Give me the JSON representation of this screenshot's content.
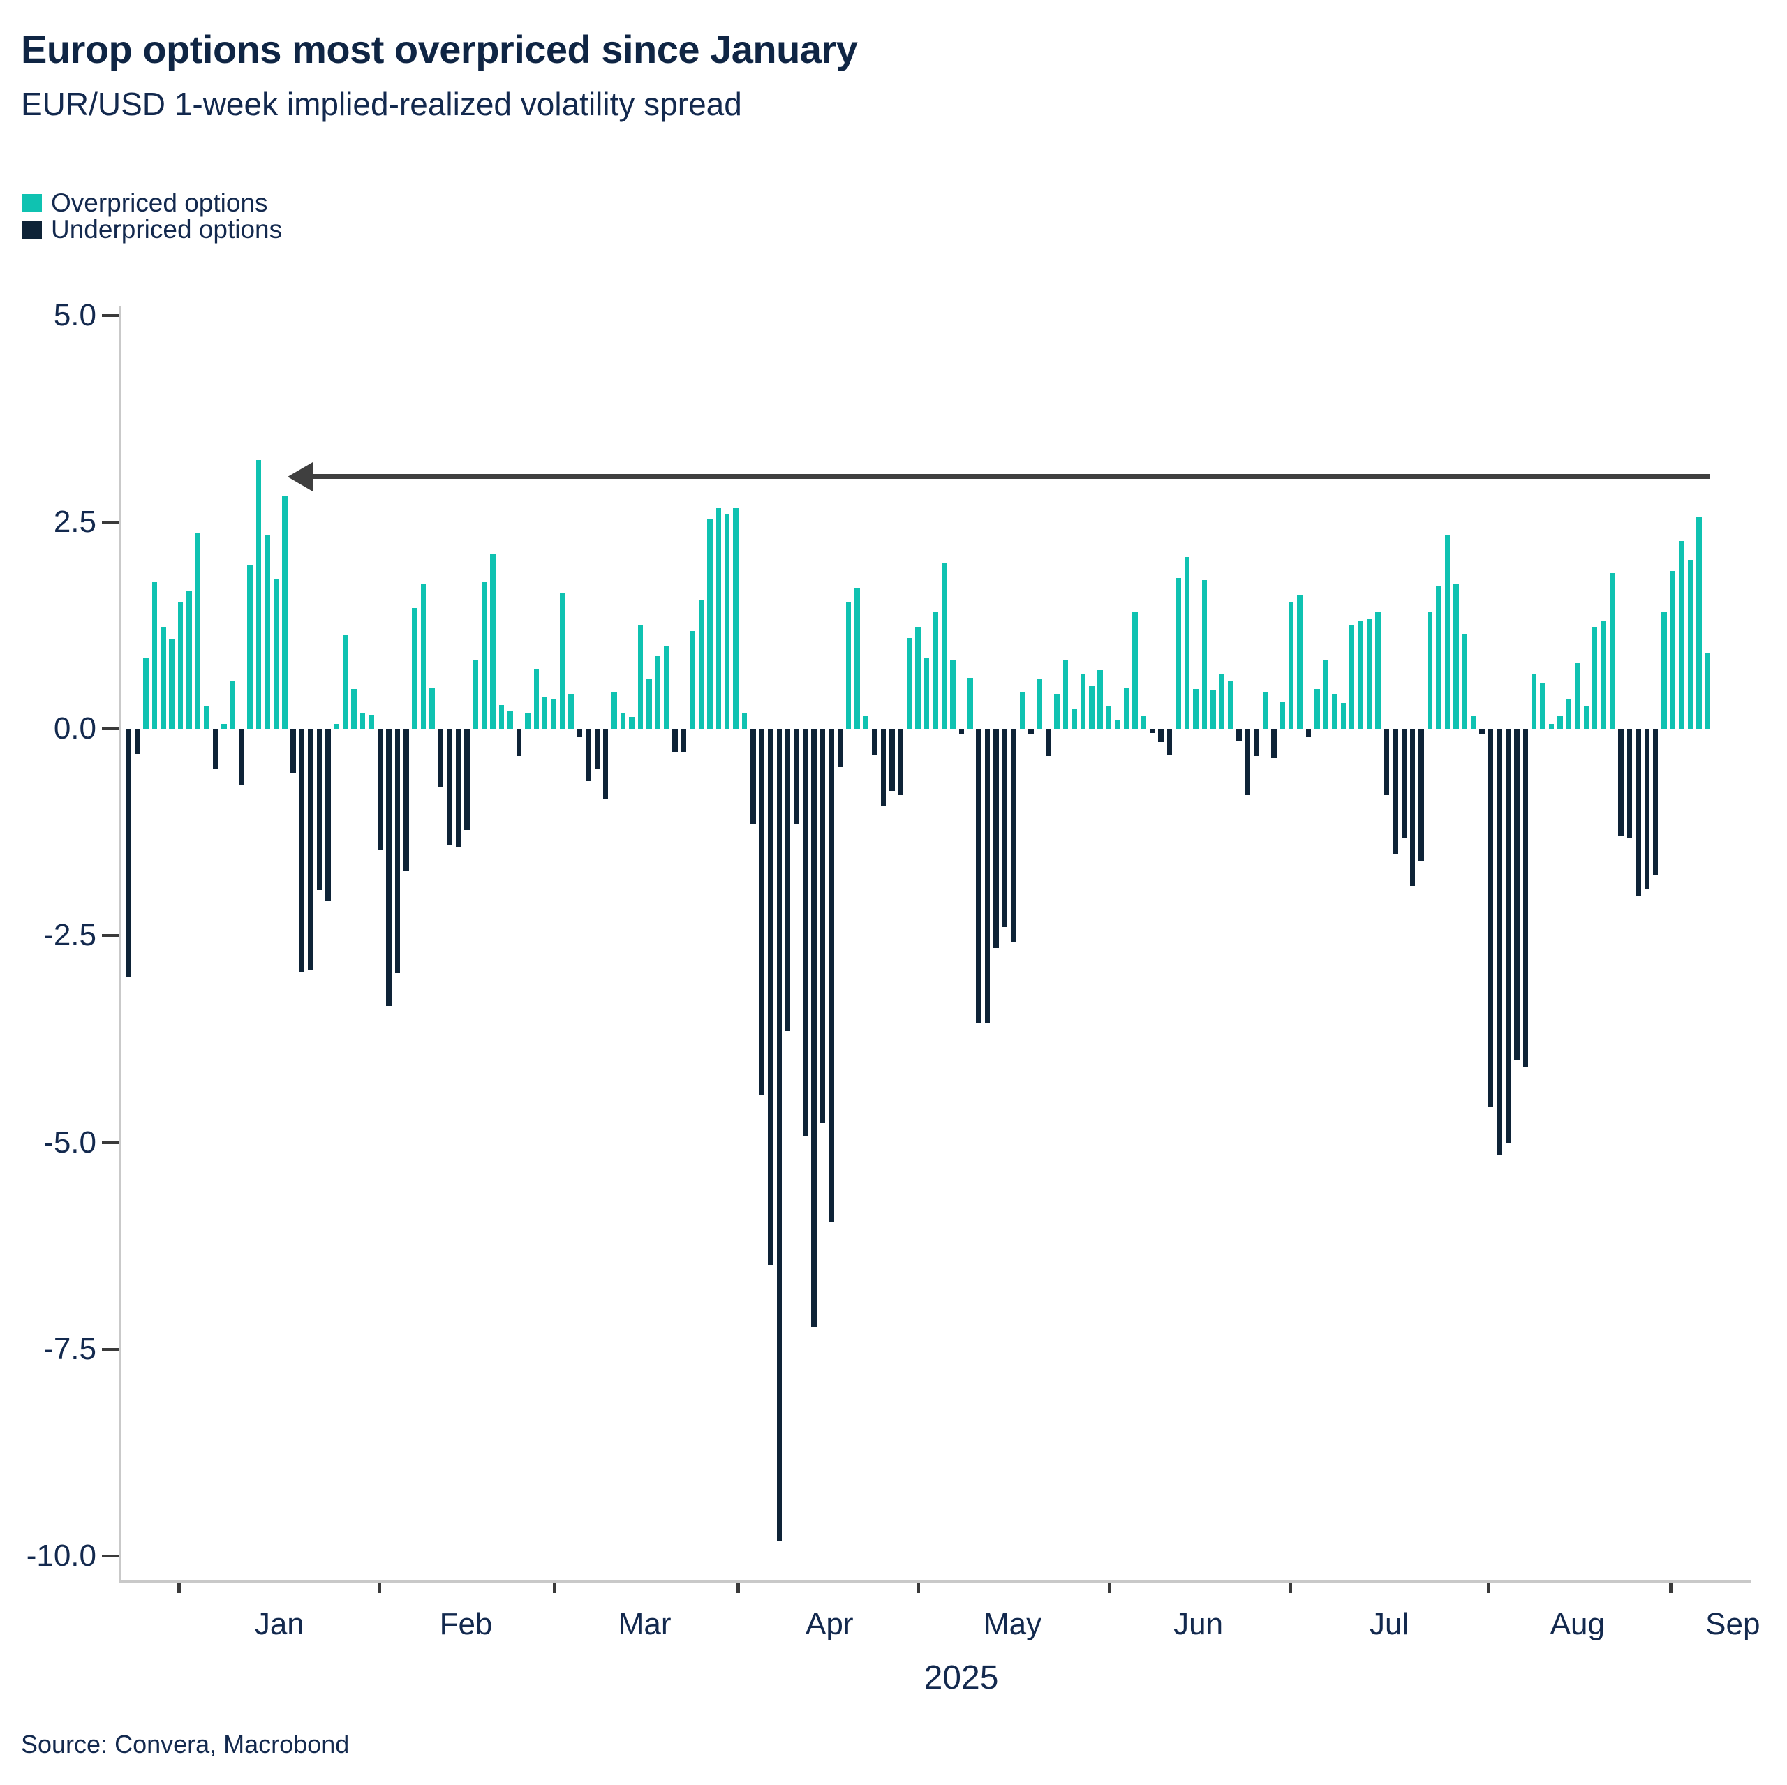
{
  "header": {
    "title": "Europ options most overpriced since January",
    "subtitle": "EUR/USD 1-week implied-realized volatility spread"
  },
  "legend": [
    {
      "label": "Overpriced options",
      "color": "#0FC2B1"
    },
    {
      "label": "Underpriced options",
      "color": "#0E2337"
    }
  ],
  "footer": {
    "source": "Source: Convera, Macrobond"
  },
  "colors": {
    "positive": "#0FC2B1",
    "negative": "#0E2337",
    "text": "#13294E",
    "title_text": "#0F2544",
    "axis_line": "#C9C9C9",
    "tick_mark": "#3A3A3A",
    "arrow": "#3F3F3F"
  },
  "chart_data": {
    "type": "bar",
    "title": "Europ options most overpriced since January",
    "subtitle": "EUR/USD 1-week implied-realized volatility spread",
    "xlabel": "2025",
    "ylabel": "",
    "ylim": [
      -10.3,
      5.1
    ],
    "grid": false,
    "legend_position": "top-left",
    "x_axis_year": "2025",
    "y_ticks": [
      {
        "label": "5.0",
        "value": 5.0
      },
      {
        "label": "2.5",
        "value": 2.5
      },
      {
        "label": "0.0",
        "value": 0.0
      },
      {
        "label": "-2.5",
        "value": -2.5
      },
      {
        "label": "-5.0",
        "value": -5.0
      },
      {
        "label": "-7.5",
        "value": -7.5
      },
      {
        "label": "-10.0",
        "value": -10.0
      }
    ],
    "months": [
      {
        "label": "Jan",
        "tick_index": 5.8,
        "label_index": 17.4
      },
      {
        "label": "Feb",
        "tick_index": 28.9,
        "label_index": 38.9
      },
      {
        "label": "Mar",
        "tick_index": 49.1,
        "label_index": 59.5
      },
      {
        "label": "Apr",
        "tick_index": 70.2,
        "label_index": 80.8
      },
      {
        "label": "May",
        "tick_index": 91.0,
        "label_index": 101.9
      },
      {
        "label": "Jun",
        "tick_index": 113.0,
        "label_index": 123.3
      },
      {
        "label": "Jul",
        "tick_index": 133.9,
        "label_index": 145.3
      },
      {
        "label": "Aug",
        "tick_index": 156.7,
        "label_index": 167.0
      },
      {
        "label": "Sep",
        "tick_index": 177.7,
        "label_index": 184.9
      }
    ],
    "annotation_arrow": {
      "y_value": 3.05,
      "from_index": 182.3,
      "to_index": 18.3
    },
    "series": [
      {
        "name": "EUR/USD 1-week implied-realized volatility spread (vol pts, daily)",
        "values": [
          -3.0,
          -0.3,
          0.85,
          1.77,
          1.23,
          1.09,
          1.53,
          1.66,
          2.37,
          0.27,
          -0.49,
          0.06,
          0.58,
          -0.68,
          1.98,
          3.25,
          2.35,
          1.81,
          2.81,
          -0.54,
          -2.94,
          -2.92,
          -1.95,
          -2.08,
          0.06,
          1.13,
          0.48,
          0.19,
          0.17,
          -1.46,
          -3.35,
          -2.95,
          -1.71,
          1.46,
          1.75,
          0.5,
          -0.7,
          -1.4,
          -1.43,
          -1.22,
          0.83,
          1.78,
          2.11,
          0.29,
          0.22,
          -0.33,
          0.19,
          0.73,
          0.38,
          0.36,
          1.65,
          0.42,
          -0.1,
          -0.63,
          -0.49,
          -0.85,
          0.45,
          0.19,
          0.14,
          1.26,
          0.6,
          0.89,
          1.0,
          -0.28,
          -0.28,
          1.18,
          1.56,
          2.53,
          2.67,
          2.6,
          2.67,
          0.19,
          -1.15,
          -4.42,
          -6.48,
          -9.82,
          -3.65,
          -1.15,
          -4.92,
          -7.23,
          -4.76,
          -5.96,
          -0.46,
          1.54,
          1.7,
          0.16,
          -0.31,
          -0.94,
          -0.75,
          -0.8,
          1.1,
          1.23,
          0.86,
          1.42,
          2.01,
          0.84,
          -0.07,
          0.62,
          -3.55,
          -3.56,
          -2.65,
          -2.4,
          -2.57,
          0.45,
          -0.07,
          0.6,
          -0.33,
          0.42,
          0.84,
          0.24,
          0.66,
          0.52,
          0.71,
          0.27,
          0.1,
          0.5,
          1.41,
          0.16,
          -0.05,
          -0.16,
          -0.31,
          1.82,
          2.08,
          0.48,
          1.8,
          0.47,
          0.66,
          0.58,
          -0.15,
          -0.8,
          -0.33,
          0.45,
          -0.35,
          0.32,
          1.54,
          1.61,
          -0.1,
          0.48,
          0.83,
          0.42,
          0.31,
          1.25,
          1.31,
          1.33,
          1.41,
          -0.8,
          -1.51,
          -1.32,
          -1.9,
          -1.6,
          1.42,
          1.73,
          2.34,
          1.75,
          1.15,
          0.16,
          -0.07,
          -4.57,
          -5.15,
          -5.0,
          -4.0,
          -4.08,
          0.66,
          0.55,
          0.06,
          0.16,
          0.36,
          0.79,
          0.27,
          1.23,
          1.31,
          1.88,
          -1.3,
          -1.32,
          -2.02,
          -1.93,
          -1.76,
          1.41,
          1.91,
          2.27,
          2.04,
          2.56,
          0.92
        ]
      }
    ]
  }
}
